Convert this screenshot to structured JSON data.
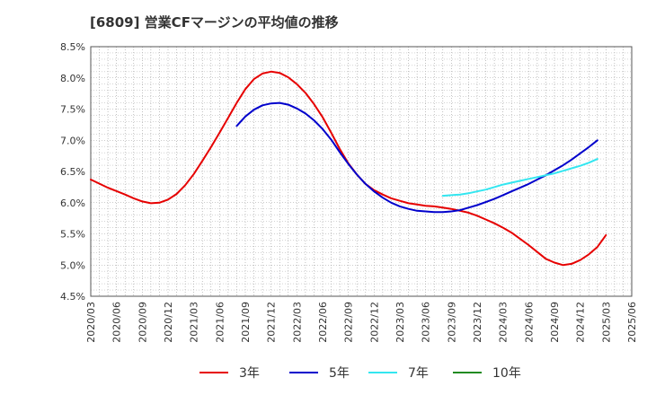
{
  "chart_data": {
    "type": "line",
    "title": "[6809]  営業CFマージンの平均値の推移",
    "ylim": [
      4.5,
      8.5
    ],
    "yticks": [
      "4.5%",
      "5.0%",
      "5.5%",
      "6.0%",
      "6.5%",
      "7.0%",
      "7.5%",
      "8.0%",
      "8.5%"
    ],
    "xticks": [
      "2020/03",
      "2020/06",
      "2020/09",
      "2020/12",
      "2021/03",
      "2021/06",
      "2021/09",
      "2021/12",
      "2022/03",
      "2022/06",
      "2022/09",
      "2022/12",
      "2023/03",
      "2023/06",
      "2023/09",
      "2023/12",
      "2024/03",
      "2024/06",
      "2024/09",
      "2024/12",
      "2025/03",
      "2025/06"
    ],
    "grid": true,
    "legend_position": "bottom",
    "series": [
      {
        "name": "3年",
        "color": "#e60000",
        "points": [
          [
            "2020/03",
            6.37
          ],
          [
            "2020/05",
            6.24
          ],
          [
            "2020/07",
            6.13
          ],
          [
            "2020/08",
            6.07
          ],
          [
            "2020/09",
            6.02
          ],
          [
            "2020/10",
            5.99
          ],
          [
            "2020/11",
            6.0
          ],
          [
            "2020/12",
            6.05
          ],
          [
            "2021/01",
            6.14
          ],
          [
            "2021/02",
            6.28
          ],
          [
            "2021/03",
            6.46
          ],
          [
            "2021/04",
            6.67
          ],
          [
            "2021/05",
            6.89
          ],
          [
            "2021/06",
            7.12
          ],
          [
            "2021/07",
            7.36
          ],
          [
            "2021/08",
            7.6
          ],
          [
            "2021/09",
            7.82
          ],
          [
            "2021/10",
            7.98
          ],
          [
            "2021/11",
            8.07
          ],
          [
            "2021/12",
            8.1
          ],
          [
            "2022/01",
            8.08
          ],
          [
            "2022/02",
            8.01
          ],
          [
            "2022/03",
            7.9
          ],
          [
            "2022/04",
            7.76
          ],
          [
            "2022/05",
            7.58
          ],
          [
            "2022/06",
            7.37
          ],
          [
            "2022/07",
            7.12
          ],
          [
            "2022/08",
            6.86
          ],
          [
            "2022/09",
            6.63
          ],
          [
            "2022/10",
            6.45
          ],
          [
            "2022/11",
            6.3
          ],
          [
            "2022/12",
            6.2
          ],
          [
            "2023/01",
            6.13
          ],
          [
            "2023/02",
            6.07
          ],
          [
            "2023/03",
            6.03
          ],
          [
            "2023/04",
            5.99
          ],
          [
            "2023/05",
            5.97
          ],
          [
            "2023/06",
            5.95
          ],
          [
            "2023/07",
            5.94
          ],
          [
            "2023/08",
            5.92
          ],
          [
            "2023/09",
            5.9
          ],
          [
            "2023/10",
            5.87
          ],
          [
            "2023/11",
            5.84
          ],
          [
            "2023/12",
            5.79
          ],
          [
            "2024/01",
            5.73
          ],
          [
            "2024/02",
            5.67
          ],
          [
            "2024/03",
            5.6
          ],
          [
            "2024/04",
            5.52
          ],
          [
            "2024/05",
            5.42
          ],
          [
            "2024/06",
            5.32
          ],
          [
            "2024/07",
            5.21
          ],
          [
            "2024/08",
            5.1
          ],
          [
            "2024/09",
            5.04
          ],
          [
            "2024/10",
            5.0
          ],
          [
            "2024/11",
            5.02
          ],
          [
            "2024/12",
            5.08
          ],
          [
            "2025/01",
            5.17
          ],
          [
            "2025/02",
            5.29
          ],
          [
            "2025/03",
            5.48
          ]
        ]
      },
      {
        "name": "5年",
        "color": "#0000cc",
        "points": [
          [
            "2021/08",
            7.23
          ],
          [
            "2021/09",
            7.38
          ],
          [
            "2021/10",
            7.49
          ],
          [
            "2021/11",
            7.56
          ],
          [
            "2021/12",
            7.59
          ],
          [
            "2022/01",
            7.6
          ],
          [
            "2022/02",
            7.57
          ],
          [
            "2022/03",
            7.51
          ],
          [
            "2022/04",
            7.43
          ],
          [
            "2022/05",
            7.32
          ],
          [
            "2022/06",
            7.18
          ],
          [
            "2022/07",
            7.01
          ],
          [
            "2022/08",
            6.81
          ],
          [
            "2022/09",
            6.62
          ],
          [
            "2022/10",
            6.45
          ],
          [
            "2022/11",
            6.3
          ],
          [
            "2022/12",
            6.18
          ],
          [
            "2023/01",
            6.08
          ],
          [
            "2023/02",
            6.0
          ],
          [
            "2023/03",
            5.94
          ],
          [
            "2023/04",
            5.9
          ],
          [
            "2023/05",
            5.87
          ],
          [
            "2023/06",
            5.86
          ],
          [
            "2023/07",
            5.85
          ],
          [
            "2023/08",
            5.85
          ],
          [
            "2023/09",
            5.86
          ],
          [
            "2023/10",
            5.88
          ],
          [
            "2023/11",
            5.92
          ],
          [
            "2023/12",
            5.96
          ],
          [
            "2024/01",
            6.01
          ],
          [
            "2024/02",
            6.06
          ],
          [
            "2024/03",
            6.12
          ],
          [
            "2024/04",
            6.18
          ],
          [
            "2024/05",
            6.24
          ],
          [
            "2024/06",
            6.3
          ],
          [
            "2024/07",
            6.37
          ],
          [
            "2024/08",
            6.44
          ],
          [
            "2024/09",
            6.52
          ],
          [
            "2024/10",
            6.6
          ],
          [
            "2024/11",
            6.69
          ],
          [
            "2024/12",
            6.79
          ],
          [
            "2025/01",
            6.89
          ],
          [
            "2025/02",
            7.0
          ]
        ]
      },
      {
        "name": "7年",
        "color": "#33e6f0",
        "points": [
          [
            "2023/08",
            6.11
          ],
          [
            "2023/09",
            6.12
          ],
          [
            "2023/10",
            6.13
          ],
          [
            "2023/11",
            6.15
          ],
          [
            "2023/12",
            6.18
          ],
          [
            "2024/01",
            6.21
          ],
          [
            "2024/02",
            6.25
          ],
          [
            "2024/03",
            6.29
          ],
          [
            "2024/04",
            6.32
          ],
          [
            "2024/05",
            6.35
          ],
          [
            "2024/06",
            6.38
          ],
          [
            "2024/07",
            6.41
          ],
          [
            "2024/08",
            6.44
          ],
          [
            "2024/09",
            6.47
          ],
          [
            "2024/10",
            6.51
          ],
          [
            "2024/11",
            6.55
          ],
          [
            "2024/12",
            6.59
          ],
          [
            "2025/01",
            6.64
          ],
          [
            "2025/02",
            6.7
          ]
        ]
      },
      {
        "name": "10年",
        "color": "#228b22",
        "points": []
      }
    ]
  }
}
